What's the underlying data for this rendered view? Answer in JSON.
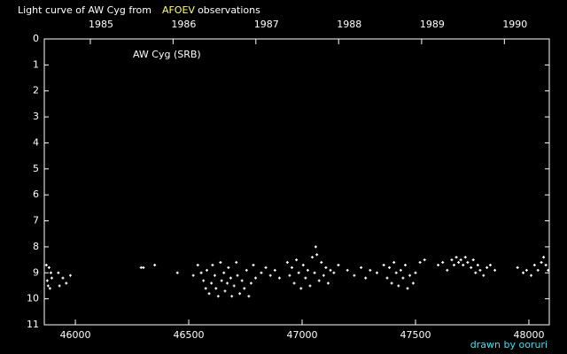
{
  "chart_data": {
    "type": "scatter",
    "title": "Light curve of AW Cyg from",
    "title_source": "AFOEV",
    "title_suffix": "observations",
    "annotation": "AW Cyg (SRB)",
    "credit": "drawn by ooruri",
    "color": "#ffffff",
    "invert_y": true,
    "xlim": [
      45863,
      48090
    ],
    "ylim": [
      0,
      11
    ],
    "xticks": [
      46000,
      46500,
      47000,
      47500,
      48000
    ],
    "yticks": [
      0,
      1,
      2,
      3,
      4,
      5,
      6,
      7,
      8,
      9,
      10,
      11
    ],
    "x2ticks": [
      {
        "value": 46066,
        "label": "1985"
      },
      {
        "value": 46431,
        "label": "1986"
      },
      {
        "value": 46796,
        "label": "1987"
      },
      {
        "value": 47161,
        "label": "1988"
      },
      {
        "value": 47527,
        "label": "1989"
      },
      {
        "value": 47892,
        "label": "1990"
      }
    ],
    "x": [
      45872,
      45876,
      45880,
      45884,
      45888,
      45892,
      45896,
      45925,
      45930,
      45945,
      45960,
      45978,
      46290,
      46300,
      46350,
      46450,
      46520,
      46540,
      46555,
      46565,
      46575,
      46580,
      46590,
      46600,
      46605,
      46615,
      46620,
      46630,
      46640,
      46645,
      46655,
      46660,
      46670,
      46675,
      46685,
      46690,
      46700,
      46710,
      46715,
      46725,
      46735,
      46745,
      46755,
      46765,
      46775,
      46785,
      46795,
      46820,
      46840,
      46860,
      46880,
      46900,
      46935,
      46945,
      46955,
      46965,
      46975,
      46985,
      46995,
      47005,
      47015,
      47025,
      47035,
      47045,
      47055,
      47060,
      47065,
      47075,
      47085,
      47095,
      47105,
      47115,
      47125,
      47140,
      47160,
      47200,
      47230,
      47260,
      47280,
      47300,
      47330,
      47360,
      47375,
      47385,
      47395,
      47405,
      47415,
      47425,
      47435,
      47445,
      47455,
      47465,
      47475,
      47490,
      47500,
      47520,
      47540,
      47600,
      47620,
      47640,
      47660,
      47670,
      47680,
      47690,
      47700,
      47710,
      47720,
      47730,
      47745,
      47755,
      47765,
      47775,
      47785,
      47800,
      47815,
      47830,
      47850,
      47950,
      47975,
      47990,
      48010,
      48025,
      48040,
      48055,
      48065,
      48075,
      48085
    ],
    "values": [
      8.7,
      9.3,
      9.5,
      8.8,
      9.6,
      9.0,
      9.2,
      9.0,
      9.5,
      9.2,
      9.4,
      9.1,
      8.8,
      8.8,
      8.7,
      9.0,
      9.1,
      8.7,
      9.0,
      9.3,
      9.6,
      8.9,
      9.8,
      9.4,
      8.7,
      9.1,
      9.6,
      9.9,
      8.6,
      9.3,
      9.0,
      9.7,
      9.4,
      8.8,
      9.2,
      9.9,
      9.5,
      8.6,
      9.1,
      9.8,
      9.3,
      9.6,
      8.9,
      9.9,
      9.4,
      8.7,
      9.2,
      9.0,
      8.8,
      9.1,
      8.9,
      9.2,
      8.6,
      9.1,
      8.8,
      9.4,
      8.5,
      9.0,
      9.6,
      8.7,
      9.2,
      8.9,
      9.5,
      8.4,
      9.0,
      8.0,
      8.3,
      9.3,
      8.6,
      9.1,
      8.8,
      9.4,
      8.9,
      9.0,
      8.7,
      8.9,
      9.1,
      8.8,
      9.2,
      8.9,
      9.0,
      8.7,
      9.2,
      8.8,
      9.4,
      8.6,
      9.0,
      9.5,
      8.9,
      9.2,
      8.7,
      9.6,
      9.1,
      9.4,
      9.0,
      8.6,
      8.5,
      8.7,
      8.6,
      8.9,
      8.5,
      8.7,
      8.4,
      8.6,
      8.5,
      8.7,
      8.4,
      8.6,
      8.8,
      8.5,
      9.0,
      8.7,
      8.9,
      9.1,
      8.8,
      8.7,
      8.9,
      8.8,
      9.0,
      8.9,
      9.1,
      8.7,
      8.9,
      8.6,
      8.4,
      8.7,
      8.9
    ]
  }
}
